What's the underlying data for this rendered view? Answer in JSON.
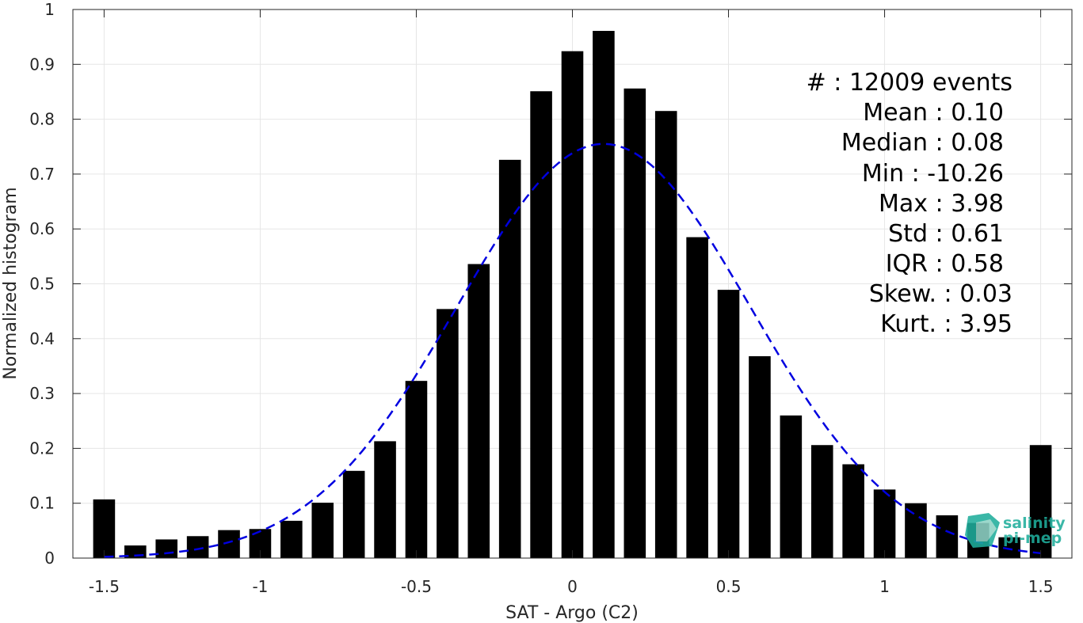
{
  "chart_data": {
    "type": "bar",
    "xlabel": "SAT - Argo (C2)",
    "ylabel": "Normalized histogram",
    "xlim": [
      -1.6,
      1.6
    ],
    "ylim": [
      0,
      1
    ],
    "grid": true,
    "x_ticks": [
      -1.5,
      -1,
      -0.5,
      0,
      0.5,
      1,
      1.5
    ],
    "x_tick_labels": [
      "-1.5",
      "-1",
      "-0.5",
      "0",
      "0.5",
      "1",
      "1.5"
    ],
    "y_ticks": [
      0,
      0.1,
      0.2,
      0.3,
      0.4,
      0.5,
      0.6,
      0.7,
      0.8,
      0.9,
      1
    ],
    "y_tick_labels": [
      "0",
      "0.1",
      "0.2",
      "0.3",
      "0.4",
      "0.5",
      "0.6",
      "0.7",
      "0.8",
      "0.9",
      "1"
    ],
    "bar_color": "#000000",
    "bar_width": 0.07,
    "x": [
      -1.5,
      -1.4,
      -1.3,
      -1.2,
      -1.1,
      -1.0,
      -0.9,
      -0.8,
      -0.7,
      -0.6,
      -0.5,
      -0.4,
      -0.3,
      -0.2,
      -0.1,
      0.0,
      0.1,
      0.2,
      0.3,
      0.4,
      0.5,
      0.6,
      0.7,
      0.8,
      0.9,
      1.0,
      1.1,
      1.2,
      1.3,
      1.4,
      1.5
    ],
    "values": [
      0.107,
      0.023,
      0.034,
      0.04,
      0.051,
      0.053,
      0.068,
      0.101,
      0.159,
      0.213,
      0.323,
      0.454,
      0.536,
      0.726,
      0.851,
      0.924,
      0.961,
      0.856,
      0.815,
      0.585,
      0.489,
      0.368,
      0.26,
      0.206,
      0.171,
      0.125,
      0.1,
      0.078,
      0.064,
      0.038,
      0.206
    ],
    "fit_curve": {
      "type": "gaussian",
      "color": "#0000e0",
      "style": "dashed",
      "mean": 0.1,
      "std": 0.47,
      "peak": 0.755,
      "x_range": [
        -1.5,
        1.5
      ]
    },
    "annotations": [
      "#  : 12009 events",
      "Mean : 0.10",
      "Median : 0.08",
      "Min : -10.26",
      "Max : 3.98",
      "Std : 0.61",
      "IQR : 0.58",
      "Skew. : 0.03",
      "Kurt. : 3.95"
    ]
  },
  "logo": {
    "line1": "salinity",
    "line2": "pi-mep",
    "colors": [
      "#1fae9c",
      "#147a6e",
      "#8fd3c6"
    ]
  }
}
